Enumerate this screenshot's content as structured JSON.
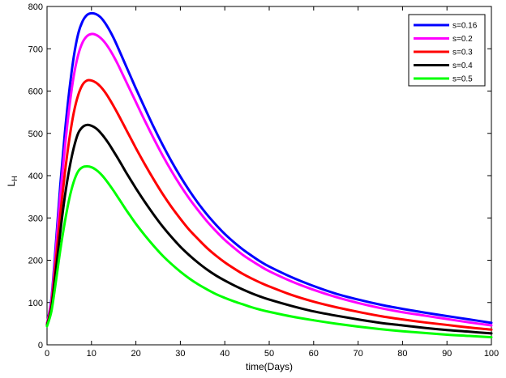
{
  "chart_data": {
    "type": "line",
    "title": "",
    "xlabel": "time(Days)",
    "ylabel": "L",
    "ylabel_subscript": "H",
    "xlim": [
      0,
      100
    ],
    "ylim": [
      0,
      800
    ],
    "xticks": [
      0,
      10,
      20,
      30,
      40,
      50,
      60,
      70,
      80,
      90,
      100
    ],
    "yticks": [
      0,
      100,
      200,
      300,
      400,
      500,
      600,
      700,
      800
    ],
    "grid": false,
    "legend_position": "top-right",
    "x": [
      0,
      1,
      2,
      3,
      4,
      5,
      6,
      7,
      8,
      9,
      10,
      11,
      12,
      13,
      14,
      15,
      16,
      17,
      18,
      19,
      20,
      22,
      24,
      26,
      28,
      30,
      32,
      34,
      36,
      38,
      40,
      42,
      44,
      46,
      48,
      50,
      55,
      60,
      65,
      70,
      75,
      80,
      85,
      90,
      95,
      100
    ],
    "series": [
      {
        "name": "s=0.16",
        "color": "#0000ff",
        "values": [
          50,
          110,
          240,
          380,
          500,
          600,
          680,
          735,
          765,
          780,
          784,
          782,
          775,
          762,
          745,
          725,
          702,
          678,
          654,
          630,
          606,
          560,
          515,
          473,
          434,
          398,
          365,
          335,
          308,
          284,
          262,
          243,
          226,
          211,
          197,
          185,
          160,
          139,
          121,
          107,
          95,
          85,
          76,
          68,
          60,
          52
        ]
      },
      {
        "name": "s=0.2",
        "color": "#ff00ff",
        "values": [
          50,
          105,
          225,
          355,
          465,
          560,
          635,
          685,
          715,
          730,
          735,
          733,
          726,
          715,
          700,
          682,
          662,
          640,
          618,
          596,
          574,
          530,
          488,
          448,
          411,
          377,
          346,
          318,
          292,
          269,
          248,
          230,
          213,
          199,
          186,
          174,
          150,
          130,
          113,
          99,
          87,
          77,
          69,
          61,
          53,
          46
        ]
      },
      {
        "name": "s=0.3",
        "color": "#ff0000",
        "values": [
          48,
          95,
          200,
          310,
          405,
          485,
          548,
          590,
          615,
          625,
          625,
          620,
          611,
          598,
          582,
          564,
          545,
          525,
          505,
          485,
          465,
          427,
          391,
          357,
          326,
          298,
          272,
          250,
          229,
          211,
          195,
          181,
          168,
          157,
          147,
          138,
          118,
          102,
          89,
          78,
          68,
          60,
          53,
          47,
          41,
          36
        ]
      },
      {
        "name": "s=0.4",
        "color": "#000000",
        "values": [
          46,
          88,
          175,
          268,
          350,
          415,
          465,
          500,
          515,
          520,
          518,
          512,
          502,
          489,
          474,
          457,
          440,
          422,
          404,
          387,
          370,
          338,
          308,
          280,
          255,
          232,
          212,
          194,
          178,
          164,
          152,
          141,
          131,
          122,
          114,
          107,
          92,
          79,
          69,
          60,
          52,
          46,
          40,
          35,
          31,
          27
        ]
      },
      {
        "name": "s=0.5",
        "color": "#00ff00",
        "values": [
          44,
          80,
          150,
          225,
          290,
          345,
          385,
          410,
          420,
          422,
          420,
          414,
          405,
          393,
          379,
          364,
          348,
          332,
          316,
          301,
          286,
          259,
          234,
          211,
          191,
          173,
          157,
          143,
          131,
          120,
          111,
          103,
          96,
          89,
          83,
          78,
          67,
          58,
          50,
          43,
          37,
          32,
          28,
          24,
          21,
          18
        ]
      }
    ]
  }
}
